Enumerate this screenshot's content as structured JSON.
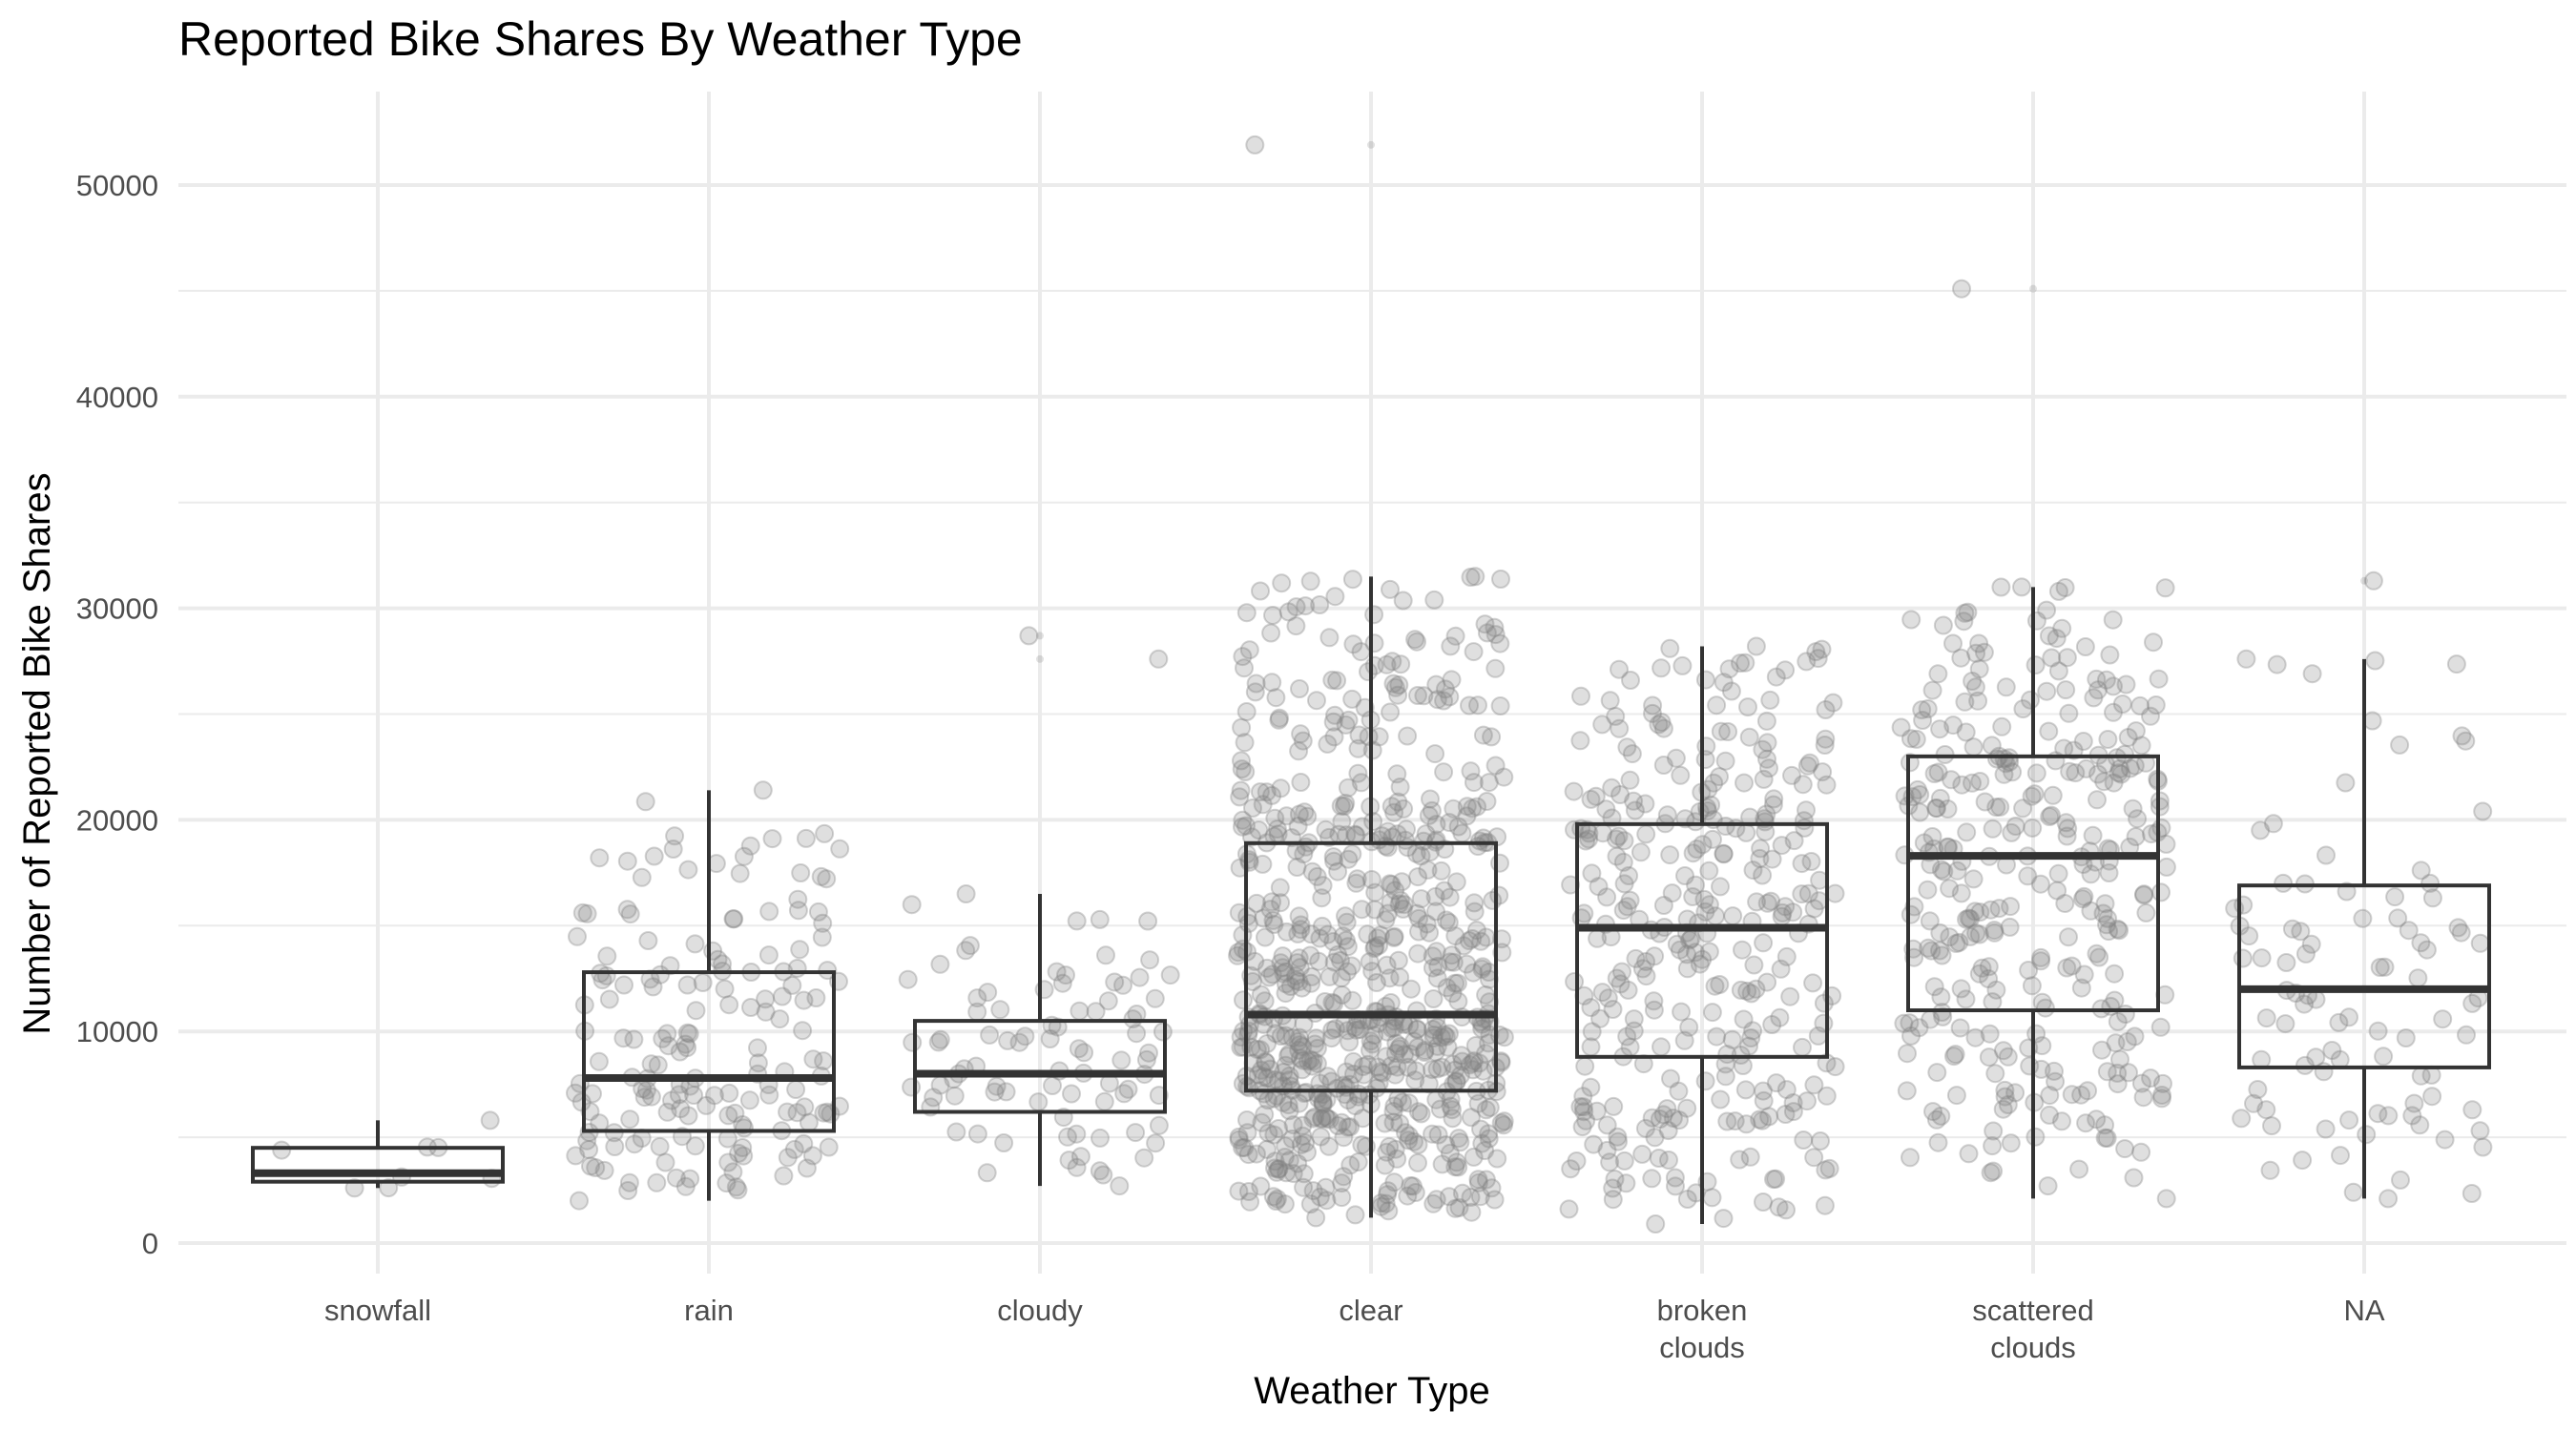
{
  "chart_data": {
    "type": "boxplot",
    "title": "Reported Bike Shares By Weather Type",
    "xlabel": "Weather Type",
    "ylabel": "Number of Reported Bike Shares",
    "ylim": [
      -3000,
      54500
    ],
    "yticks": [
      0,
      10000,
      20000,
      30000,
      40000,
      50000
    ],
    "grid": true,
    "jitter_points": true,
    "categories": [
      {
        "label": [
          "snowfall"
        ],
        "n_points": 6,
        "min": 2600,
        "q1": 2900,
        "median": 3300,
        "q3": 4500,
        "max": 5800,
        "outliers": []
      },
      {
        "label": [
          "rain"
        ],
        "n_points": 170,
        "min": 2000,
        "q1": 5300,
        "median": 7800,
        "q3": 12800,
        "max": 21400,
        "outliers": []
      },
      {
        "label": [
          "cloudy"
        ],
        "n_points": 85,
        "min": 2700,
        "q1": 6200,
        "median": 8000,
        "q3": 10500,
        "max": 16500,
        "outliers": [
          27600,
          28700
        ]
      },
      {
        "label": [
          "clear"
        ],
        "n_points": 720,
        "min": 1200,
        "q1": 7200,
        "median": 10800,
        "q3": 18900,
        "max": 31500,
        "outliers": [
          51900
        ]
      },
      {
        "label": [
          "broken",
          "clouds"
        ],
        "n_points": 330,
        "min": 900,
        "q1": 8800,
        "median": 14900,
        "q3": 19800,
        "max": 28200,
        "outliers": []
      },
      {
        "label": [
          "scattered",
          "clouds"
        ],
        "n_points": 330,
        "min": 2100,
        "q1": 11000,
        "median": 18300,
        "q3": 23000,
        "max": 31000,
        "outliers": [
          45100
        ]
      },
      {
        "label": [
          "NA"
        ],
        "n_points": 90,
        "min": 2100,
        "q1": 8300,
        "median": 12000,
        "q3": 16900,
        "max": 27600,
        "outliers": [
          31300
        ]
      }
    ]
  }
}
